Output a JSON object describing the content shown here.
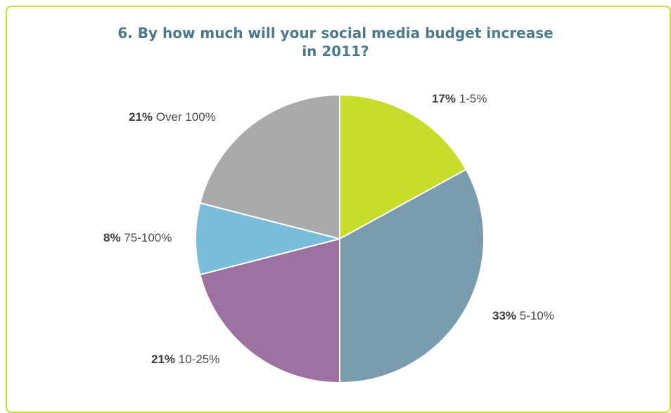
{
  "chart_data": {
    "type": "pie",
    "title_lines": [
      "6. By how much will your social media budget increase",
      "in 2011?"
    ],
    "slices": [
      {
        "label": "1-5%",
        "value_text": "17%",
        "value": 17,
        "color": "#c8dc2b"
      },
      {
        "label": "5-10%",
        "value_text": "33%",
        "value": 33,
        "color": "#789cae"
      },
      {
        "label": "10-25%",
        "value_text": "21%",
        "value": 21,
        "color": "#9e72a0"
      },
      {
        "label": "75-100%",
        "value_text": "8%",
        "value": 8,
        "color": "#79bddb"
      },
      {
        "label": "Over 100%",
        "value_text": "21%",
        "value": 21,
        "color": "#a9aaac"
      }
    ],
    "frame_color": "#c9dc2e",
    "title_color": "#4a7a8c"
  }
}
